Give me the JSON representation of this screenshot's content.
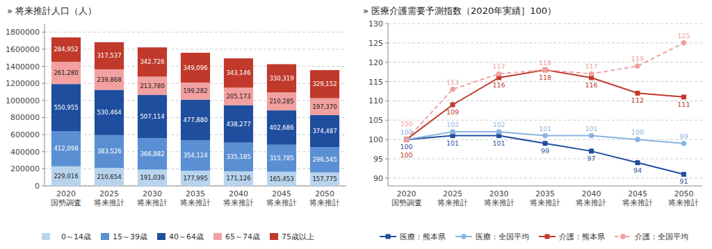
{
  "chart_data": [
    {
      "type": "bar",
      "title": "» 将来推計人口（人）",
      "stacked": true,
      "data_labels": true,
      "grid": true,
      "legend": "bottom",
      "categories": [
        "2020\n国勢調査",
        "2025\n将来推計",
        "2030\n将来推計",
        "2035\n将来推計",
        "2040\n将来推計",
        "2045\n将来推計",
        "2050\n将来推計"
      ],
      "ylim": [
        0,
        1900000
      ],
      "yticks": [
        0,
        200000,
        400000,
        600000,
        800000,
        1000000,
        1200000,
        1400000,
        1600000,
        1800000
      ],
      "series": [
        {
          "name": "　0～14歳",
          "color": "#b8d4ed",
          "values": [
            229016,
            210654,
            191039,
            177995,
            171126,
            165453,
            157775
          ],
          "value_labels": [
            "229,016",
            "210,654",
            "191,039",
            "177,995",
            "171,126",
            "165,453",
            "157,775"
          ]
        },
        {
          "name": "15～39歳",
          "color": "#5b8fd4",
          "values": [
            412098,
            383526,
            366882,
            354124,
            335185,
            315785,
            296545
          ],
          "value_labels": [
            "412,098",
            "383,526",
            "366,882",
            "354,124",
            "335,185",
            "315,785",
            "296,545"
          ]
        },
        {
          "name": "40～64歳",
          "color": "#1f4e9e",
          "values": [
            550955,
            530464,
            507114,
            477880,
            438277,
            402686,
            374487
          ],
          "value_labels": [
            "550,955",
            "530,464",
            "507,114",
            "477,880",
            "438,277",
            "402,686",
            "374,487"
          ]
        },
        {
          "name": "65～74歳",
          "color": "#f2a0a0",
          "values": [
            261280,
            239868,
            213780,
            199282,
            205173,
            210285,
            197370
          ],
          "value_labels": [
            "261,280",
            "239,868",
            "213,780",
            "199,282",
            "205,173",
            "210,285",
            "197,370"
          ]
        },
        {
          "name": "75歳以上",
          "color": "#c0392b",
          "values": [
            284952,
            317537,
            342726,
            349096,
            343146,
            330319,
            329152
          ],
          "value_labels": [
            "284,952",
            "317,537",
            "342,726",
            "349,096",
            "343,146",
            "330,319",
            "329,152"
          ]
        }
      ]
    },
    {
      "type": "line",
      "title": "» 医療介護需要予測指数（2020年実績］100）",
      "data_labels": true,
      "grid": true,
      "legend": "bottom",
      "categories": [
        "2020\n国勢調査",
        "2025\n将来推計",
        "2030\n将来推計",
        "2035\n将来推計",
        "2040\n将来推計",
        "2045\n将来推計",
        "2050\n将来推計"
      ],
      "ylim": [
        88,
        130
      ],
      "yticks": [
        90,
        95,
        100,
        105,
        110,
        115,
        120,
        125,
        130
      ],
      "series": [
        {
          "name": "医療：熊本県",
          "color": "#1f4e9e",
          "marker": "square",
          "line_style": "solid",
          "values": [
            100,
            101,
            101,
            99,
            97,
            94,
            91
          ]
        },
        {
          "name": "医療：全国平均",
          "color": "#8ab4e0",
          "marker": "circle",
          "line_style": "solid",
          "values": [
            100,
            102,
            102,
            101,
            101,
            100,
            99
          ]
        },
        {
          "name": "介護：熊本県",
          "color": "#c0392b",
          "marker": "square",
          "line_style": "solid",
          "values": [
            100,
            109,
            116,
            118,
            116,
            112,
            111
          ]
        },
        {
          "name": "介護：全国平均",
          "color": "#f2a0a0",
          "marker": "circle",
          "line_style": "dashed",
          "values": [
            100,
            113,
            117,
            118,
            117,
            119,
            125
          ]
        }
      ]
    }
  ]
}
